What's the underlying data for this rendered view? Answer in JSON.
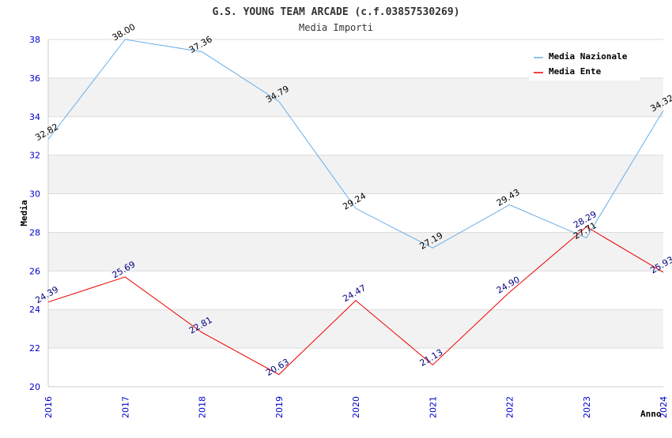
{
  "chart_data": {
    "type": "line",
    "title": "G.S. YOUNG TEAM ARCADE (c.f.03857530269)",
    "subtitle": "Media Importi",
    "xlabel": "Anno",
    "ylabel": "Media",
    "ylim": [
      20,
      38
    ],
    "yticks": [
      "20",
      "22",
      "24",
      "26",
      "28",
      "30",
      "32",
      "34",
      "36",
      "38"
    ],
    "x": [
      "2016",
      "2017",
      "2018",
      "2019",
      "2020",
      "2021",
      "2022",
      "2023",
      "2024"
    ],
    "grid": true,
    "legend_position": "top-right",
    "series": [
      {
        "name": "Media Nazionale",
        "color": "#6aaee8",
        "label_color": "#000000",
        "values": [
          32.82,
          38.0,
          37.36,
          34.79,
          29.24,
          27.19,
          29.43,
          27.71,
          34.32
        ],
        "labels": [
          "32.82",
          "38.00",
          "37.36",
          "34.79",
          "29.24",
          "27.19",
          "29.43",
          "27.71",
          "34.32"
        ]
      },
      {
        "name": "Media Ente",
        "color": "#ee0000",
        "label_color": "#000080",
        "values": [
          24.39,
          25.69,
          22.81,
          20.63,
          24.47,
          21.13,
          24.9,
          28.29,
          25.93
        ],
        "labels": [
          "24.39",
          "25.69",
          "22.81",
          "20.63",
          "24.47",
          "21.13",
          "24.90",
          "28.29",
          "25.93"
        ]
      }
    ]
  }
}
